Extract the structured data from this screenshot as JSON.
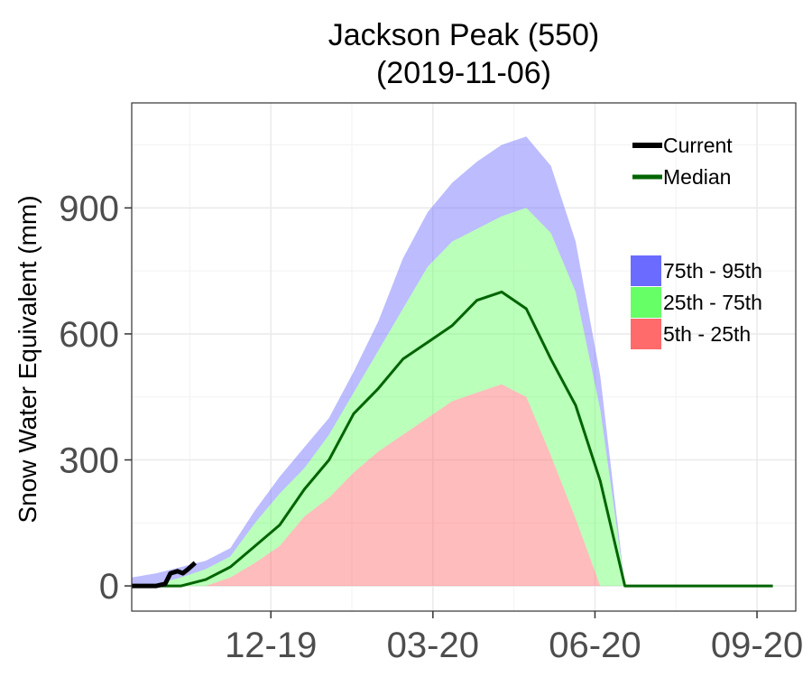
{
  "chart_data": {
    "type": "area",
    "title": "Jackson Peak (550)",
    "subtitle": "(2019-11-06)",
    "xlabel": "",
    "ylabel": "Snow Water Equivalent (mm)",
    "xlim": [
      "2019-10-01",
      "2020-10-12"
    ],
    "ylim": [
      -60,
      1150
    ],
    "x_ticks": [
      "2019-12-19",
      "2020-03-20",
      "2020-06-20",
      "2020-09-20"
    ],
    "x_tick_labels": [
      "12-19",
      "03-20",
      "06-20",
      "09-20"
    ],
    "y_ticks": [
      0,
      300,
      600,
      900
    ],
    "y_tick_labels": [
      "0",
      "300",
      "600",
      "900"
    ],
    "grid": true,
    "legend_position": "top-right",
    "legend": {
      "lines": [
        {
          "label": "Current",
          "color": "#000000"
        },
        {
          "label": "Median",
          "color": "#006400"
        }
      ],
      "bands": [
        {
          "label": "75th - 95th",
          "color": "#6b6bff"
        },
        {
          "label": "25th - 75th",
          "color": "#66ff66"
        },
        {
          "label": "5th - 25th",
          "color": "#ff6b6b"
        }
      ]
    },
    "x": [
      "2019-10-01",
      "2019-10-15",
      "2019-10-29",
      "2019-11-12",
      "2019-11-26",
      "2019-12-10",
      "2019-12-24",
      "2020-01-07",
      "2020-01-21",
      "2020-02-04",
      "2020-02-18",
      "2020-03-03",
      "2020-03-17",
      "2020-03-31",
      "2020-04-14",
      "2020-04-28",
      "2020-05-12",
      "2020-05-26",
      "2020-06-09",
      "2020-06-23",
      "2020-07-07",
      "2020-07-21",
      "2020-08-04",
      "2020-08-18",
      "2020-09-01",
      "2020-09-15",
      "2020-09-29"
    ],
    "series": [
      {
        "name": "95th",
        "values": [
          20,
          30,
          45,
          60,
          90,
          180,
          260,
          330,
          400,
          510,
          630,
          780,
          890,
          960,
          1010,
          1050,
          1070,
          1000,
          820,
          500,
          0,
          0,
          0,
          0,
          0,
          0,
          0
        ]
      },
      {
        "name": "75th",
        "values": [
          0,
          5,
          20,
          40,
          70,
          150,
          220,
          280,
          360,
          460,
          560,
          660,
          760,
          820,
          850,
          880,
          900,
          840,
          700,
          420,
          0,
          0,
          0,
          0,
          0,
          0,
          0
        ]
      },
      {
        "name": "Median",
        "color": "#006400",
        "values": [
          0,
          0,
          0,
          15,
          45,
          95,
          145,
          230,
          300,
          410,
          470,
          540,
          580,
          620,
          680,
          700,
          660,
          540,
          430,
          250,
          0,
          0,
          0,
          0,
          0,
          0,
          0
        ]
      },
      {
        "name": "25th",
        "values": [
          0,
          0,
          0,
          0,
          20,
          55,
          95,
          165,
          210,
          270,
          320,
          360,
          400,
          440,
          460,
          480,
          450,
          310,
          160,
          0,
          0,
          0,
          0,
          0,
          0,
          0,
          0
        ]
      },
      {
        "name": "5th",
        "values": [
          0,
          0,
          0,
          0,
          0,
          0,
          0,
          0,
          0,
          0,
          0,
          0,
          0,
          0,
          0,
          0,
          0,
          0,
          0,
          0,
          0,
          0,
          0,
          0,
          0,
          0,
          0
        ]
      }
    ],
    "current": {
      "name": "Current",
      "color": "#000000",
      "x": [
        "2019-10-01",
        "2019-10-08",
        "2019-10-15",
        "2019-10-20",
        "2019-10-23",
        "2019-10-27",
        "2019-10-30",
        "2019-11-02",
        "2019-11-06"
      ],
      "values": [
        0,
        0,
        0,
        5,
        30,
        35,
        30,
        40,
        55
      ]
    }
  }
}
